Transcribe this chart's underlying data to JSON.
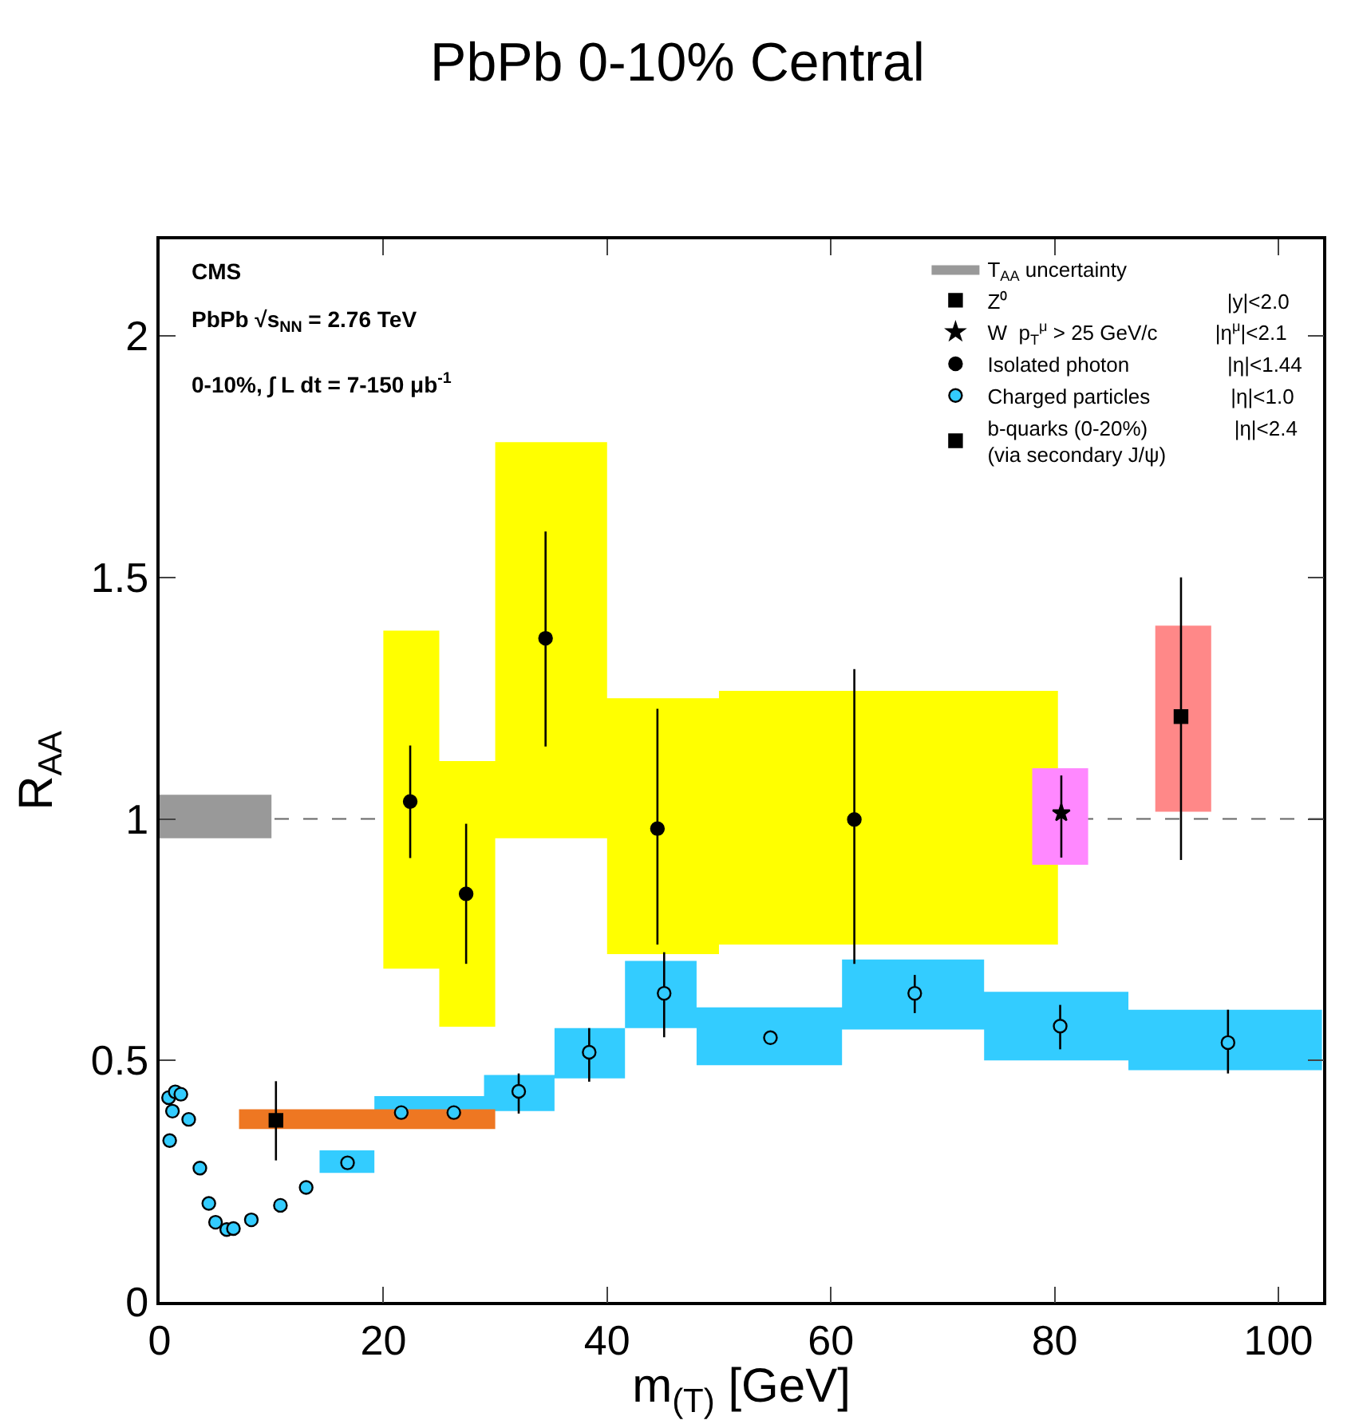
{
  "chart_data": {
    "type": "scatter",
    "title": "PbPb 0-10% Central",
    "xlabel": "m$_{(T)}$ [GeV]",
    "ylabel": "R$_{AA}$",
    "xlim": [
      0,
      104
    ],
    "xticks": [
      0,
      20,
      40,
      60,
      80,
      100
    ],
    "ylim": [
      0,
      2.2
    ],
    "yticks": [
      0,
      0.5,
      1,
      1.5,
      2
    ],
    "grid": false,
    "legend": "top right",
    "annotations": [
      "CMS",
      "PbPb √s$_{NN}$ = 2.76 TeV",
      "0-10%, ∫ L dt = 7-150 μb$^{-1}$"
    ],
    "ref_lines": [
      {
        "axis": "y",
        "value": 1,
        "label": null,
        "color": "#666666",
        "line_style": "dashed"
      }
    ],
    "series": [
      {
        "type": "area",
        "name": "T$_{AA}$ uncertainty",
        "color": "#999999",
        "x": [
          0,
          10
        ],
        "values": [
          null,
          null
        ],
        "lower": [
          0.96,
          0.96
        ],
        "upper": [
          1.05,
          1.05
        ]
      },
      {
        "type": "area",
        "color": "#ffff00",
        "x": [
          20,
          25,
          30,
          40,
          50,
          80.3
        ],
        "values": [
          null,
          null,
          null,
          null,
          null,
          null
        ],
        "lower": [
          0.69,
          0.57,
          0.96,
          0.72,
          0.74,
          0.74
        ],
        "upper": [
          1.39,
          1.12,
          1.78,
          1.25,
          1.265,
          1.265
        ]
      },
      {
        "type": "area",
        "color": "#33ccff",
        "x": [
          14.3,
          19.2,
          29,
          35.3,
          41.6,
          48,
          61,
          73.7,
          86.6,
          103.9
        ],
        "values": [
          null,
          null,
          null,
          null,
          null,
          null,
          null,
          null,
          null,
          null
        ],
        "lower": [
          0.267,
          0.36,
          0.395,
          0.463,
          0.567,
          0.49,
          0.564,
          0.5,
          0.48,
          0.48
        ],
        "upper": [
          0.314,
          0.426,
          0.47,
          0.567,
          0.706,
          0.61,
          0.709,
          0.642,
          0.605,
          0.605
        ]
      },
      {
        "type": "area",
        "color": "#ff88ff",
        "x": [
          78,
          83
        ],
        "values": [
          null,
          null
        ],
        "lower": [
          0.905,
          0.905
        ],
        "upper": [
          1.105,
          1.105
        ]
      },
      {
        "type": "area",
        "color": "#ff8888",
        "x": [
          89,
          94
        ],
        "values": [
          null,
          null
        ],
        "lower": [
          1.015,
          1.015
        ],
        "upper": [
          1.4,
          1.4
        ]
      },
      {
        "type": "area",
        "color": "#ee7722",
        "x": [
          7.1,
          30
        ],
        "values": [
          null,
          null
        ],
        "lower": [
          0.358,
          0.358
        ],
        "upper": [
          0.399,
          0.399
        ]
      },
      {
        "name": "Z⁰                                      |y|<2.0",
        "color": "#000000",
        "marker": "square",
        "x": [
          91.3
        ],
        "values": [
          1.212
        ],
        "errors": [
          [
            0.915,
            1.5
          ]
        ]
      },
      {
        "name": "W  p$_{T}$$^{μ}$ > 25 GeV/c          |η$^{μ}$|<2.1",
        "color": "#000000",
        "marker": "star",
        "x": [
          80.6
        ],
        "values": [
          1.012
        ],
        "errors": [
          [
            0.92,
            1.09
          ]
        ]
      },
      {
        "name": "Isolated photon                 |η|<1.44",
        "color": "#000000",
        "marker": "circle",
        "x": [
          22.4,
          27.4,
          34.5,
          44.5,
          62.1
        ],
        "values": [
          1.036,
          0.845,
          1.374,
          0.98,
          0.999
        ],
        "errors": [
          [
            0.919,
            1.152
          ],
          [
            0.7,
            0.99
          ],
          [
            1.15,
            1.595
          ],
          [
            0.74,
            1.228
          ],
          [
            0.7,
            1.31
          ]
        ]
      },
      {
        "name": "Charged particles              |η|<1.0",
        "color": "#33ccff",
        "marker": "circle",
        "x": [
          0.8,
          0.9,
          1.15,
          1.4,
          1.9,
          2.6,
          3.6,
          4.4,
          5.0,
          6.0,
          6.6,
          8.2,
          10.8,
          13.1,
          16.8,
          21.6,
          26.3,
          32.1,
          38.4,
          45.1,
          54.6,
          67.5,
          80.5,
          95.5
        ],
        "values": [
          0.423,
          0.334,
          0.395,
          0.435,
          0.43,
          0.378,
          0.277,
          0.204,
          0.165,
          0.15,
          0.152,
          0.17,
          0.2,
          0.237,
          0.288,
          0.392,
          0.392,
          0.436,
          0.517,
          0.639,
          0.547,
          0.639,
          0.571,
          0.537
        ],
        "errors": [
          null,
          null,
          null,
          null,
          null,
          null,
          null,
          null,
          null,
          null,
          null,
          null,
          null,
          null,
          null,
          null,
          null,
          [
            0.39,
            0.473
          ],
          [
            0.456,
            0.567
          ],
          [
            0.548,
            0.724
          ],
          null,
          [
            0.598,
            0.677
          ],
          [
            0.523,
            0.615
          ],
          [
            0.473,
            0.605
          ]
        ]
      },
      {
        "name": "b-quarks (0-20%)               |η|<2.4\n(via secondary J/ψ)",
        "color": "#000000",
        "marker": "square",
        "x": [
          10.4
        ],
        "values": [
          0.376
        ],
        "errors": [
          [
            0.293,
            0.457
          ]
        ]
      }
    ]
  }
}
